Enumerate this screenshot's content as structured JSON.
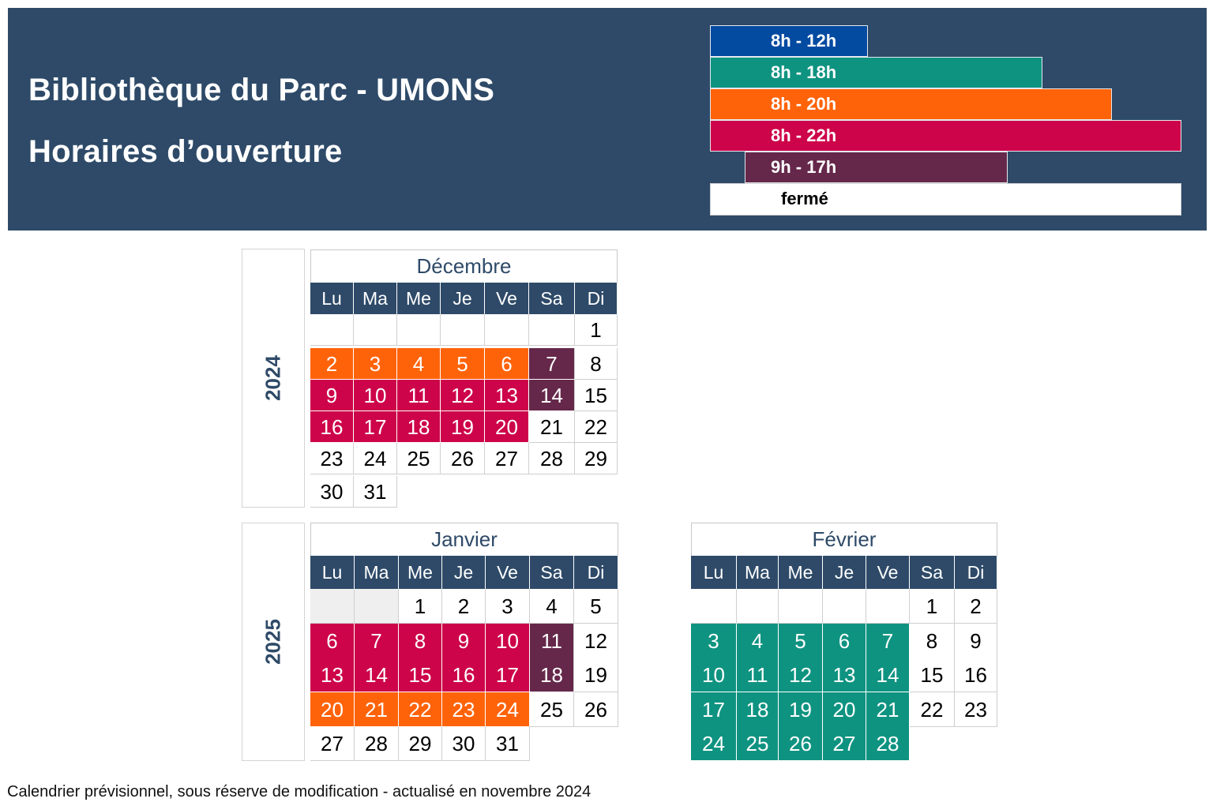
{
  "header": {
    "title": "Bibliothèque du Parc - UMONS",
    "subtitle": "Horaires d’ouverture",
    "background": "#2e4a68"
  },
  "legend": [
    {
      "key": "8_12",
      "label": "8h - 12h",
      "color": "#034aa1"
    },
    {
      "key": "8_18",
      "label": "8h - 18h",
      "color": "#0f9381"
    },
    {
      "key": "8_20",
      "label": "8h - 20h",
      "color": "#ff6309"
    },
    {
      "key": "8_22",
      "label": "8h - 22h",
      "color": "#cd0449"
    },
    {
      "key": "9_17",
      "label": "9h - 17h",
      "color": "#65284a"
    },
    {
      "key": "closed",
      "label": "fermé",
      "color": "#ffffff"
    }
  ],
  "weekdays": [
    "Lu",
    "Ma",
    "Me",
    "Je",
    "Ve",
    "Sa",
    "Di"
  ],
  "years": {
    "y2024": "2024",
    "y2025": "2025"
  },
  "months": {
    "december": {
      "name": "Décembre",
      "rows": [
        [
          null,
          null,
          null,
          null,
          null,
          null,
          {
            "d": 1,
            "s": "closed"
          }
        ],
        [
          {
            "d": 2,
            "s": "8_20"
          },
          {
            "d": 3,
            "s": "8_20"
          },
          {
            "d": 4,
            "s": "8_20"
          },
          {
            "d": 5,
            "s": "8_20"
          },
          {
            "d": 6,
            "s": "8_20"
          },
          {
            "d": 7,
            "s": "9_17"
          },
          {
            "d": 8,
            "s": "closed"
          }
        ],
        [
          {
            "d": 9,
            "s": "8_22"
          },
          {
            "d": 10,
            "s": "8_22"
          },
          {
            "d": 11,
            "s": "8_22"
          },
          {
            "d": 12,
            "s": "8_22"
          },
          {
            "d": 13,
            "s": "8_22"
          },
          {
            "d": 14,
            "s": "9_17"
          },
          {
            "d": 15,
            "s": "closed"
          }
        ],
        [
          {
            "d": 16,
            "s": "8_22"
          },
          {
            "d": 17,
            "s": "8_22"
          },
          {
            "d": 18,
            "s": "8_22"
          },
          {
            "d": 19,
            "s": "8_22"
          },
          {
            "d": 20,
            "s": "8_22"
          },
          {
            "d": 21,
            "s": "closed"
          },
          {
            "d": 22,
            "s": "closed"
          }
        ],
        [
          {
            "d": 23,
            "s": "closed"
          },
          {
            "d": 24,
            "s": "closed"
          },
          {
            "d": 25,
            "s": "closed"
          },
          {
            "d": 26,
            "s": "closed"
          },
          {
            "d": 27,
            "s": "closed"
          },
          {
            "d": 28,
            "s": "closed"
          },
          {
            "d": 29,
            "s": "closed"
          }
        ],
        [
          {
            "d": 30,
            "s": "closed"
          },
          {
            "d": 31,
            "s": "closed"
          }
        ]
      ]
    },
    "january": {
      "name": "Janvier",
      "rows": [
        [
          {
            "d": null,
            "s": "grey"
          },
          {
            "d": null,
            "s": "grey"
          },
          {
            "d": 1,
            "s": "closed"
          },
          {
            "d": 2,
            "s": "closed"
          },
          {
            "d": 3,
            "s": "closed"
          },
          {
            "d": 4,
            "s": "closed"
          },
          {
            "d": 5,
            "s": "closed"
          }
        ],
        [
          {
            "d": 6,
            "s": "8_22"
          },
          {
            "d": 7,
            "s": "8_22"
          },
          {
            "d": 8,
            "s": "8_22"
          },
          {
            "d": 9,
            "s": "8_22"
          },
          {
            "d": 10,
            "s": "8_22"
          },
          {
            "d": 11,
            "s": "9_17"
          },
          {
            "d": 12,
            "s": "closed"
          }
        ],
        [
          {
            "d": 13,
            "s": "8_22"
          },
          {
            "d": 14,
            "s": "8_22"
          },
          {
            "d": 15,
            "s": "8_22"
          },
          {
            "d": 16,
            "s": "8_22"
          },
          {
            "d": 17,
            "s": "8_22"
          },
          {
            "d": 18,
            "s": "9_17"
          },
          {
            "d": 19,
            "s": "closed"
          }
        ],
        [
          {
            "d": 20,
            "s": "8_20"
          },
          {
            "d": 21,
            "s": "8_20"
          },
          {
            "d": 22,
            "s": "8_20"
          },
          {
            "d": 23,
            "s": "8_20"
          },
          {
            "d": 24,
            "s": "8_20"
          },
          {
            "d": 25,
            "s": "closed"
          },
          {
            "d": 26,
            "s": "closed"
          }
        ],
        [
          {
            "d": 27,
            "s": "closed"
          },
          {
            "d": 28,
            "s": "closed"
          },
          {
            "d": 29,
            "s": "closed"
          },
          {
            "d": 30,
            "s": "closed"
          },
          {
            "d": 31,
            "s": "closed"
          }
        ]
      ]
    },
    "february": {
      "name": "Février",
      "rows": [
        [
          null,
          null,
          null,
          null,
          null,
          {
            "d": 1,
            "s": "closed"
          },
          {
            "d": 2,
            "s": "closed"
          }
        ],
        [
          {
            "d": 3,
            "s": "8_18"
          },
          {
            "d": 4,
            "s": "8_18"
          },
          {
            "d": 5,
            "s": "8_18"
          },
          {
            "d": 6,
            "s": "8_18"
          },
          {
            "d": 7,
            "s": "8_18"
          },
          {
            "d": 8,
            "s": "closed"
          },
          {
            "d": 9,
            "s": "closed"
          }
        ],
        [
          {
            "d": 10,
            "s": "8_18"
          },
          {
            "d": 11,
            "s": "8_18"
          },
          {
            "d": 12,
            "s": "8_18"
          },
          {
            "d": 13,
            "s": "8_18"
          },
          {
            "d": 14,
            "s": "8_18"
          },
          {
            "d": 15,
            "s": "closed"
          },
          {
            "d": 16,
            "s": "closed"
          }
        ],
        [
          {
            "d": 17,
            "s": "8_18"
          },
          {
            "d": 18,
            "s": "8_18"
          },
          {
            "d": 19,
            "s": "8_18"
          },
          {
            "d": 20,
            "s": "8_18"
          },
          {
            "d": 21,
            "s": "8_18"
          },
          {
            "d": 22,
            "s": "closed"
          },
          {
            "d": 23,
            "s": "closed"
          }
        ],
        [
          {
            "d": 24,
            "s": "8_18"
          },
          {
            "d": 25,
            "s": "8_18"
          },
          {
            "d": 26,
            "s": "8_18"
          },
          {
            "d": 27,
            "s": "8_18"
          },
          {
            "d": 28,
            "s": "8_18"
          }
        ]
      ]
    }
  },
  "footnote": "Calendrier prévisionnel, sous réserve de modification - actualisé en novembre 2024"
}
